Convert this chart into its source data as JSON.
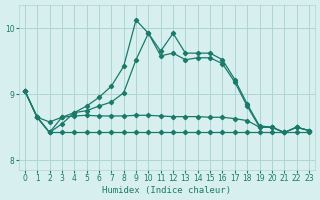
{
  "xlabel": "Humidex (Indice chaleur)",
  "xlim": [
    -0.5,
    23.5
  ],
  "ylim": [
    7.85,
    10.35
  ],
  "yticks": [
    8,
    9,
    10
  ],
  "xticks": [
    0,
    1,
    2,
    3,
    4,
    5,
    6,
    7,
    8,
    9,
    10,
    11,
    12,
    13,
    14,
    15,
    16,
    17,
    18,
    19,
    20,
    21,
    22,
    23
  ],
  "bg_color": "#d8efef",
  "grid_color": "#aed4d4",
  "line_color": "#1a7a6a",
  "line1": [
    9.05,
    8.65,
    8.42,
    8.55,
    8.72,
    8.82,
    8.95,
    9.12,
    9.42,
    10.12,
    9.92,
    9.65,
    9.92,
    9.62,
    9.62,
    9.62,
    9.52,
    9.22,
    8.85,
    8.52,
    8.5,
    8.42,
    8.5,
    8.45
  ],
  "line2": [
    9.05,
    8.65,
    8.42,
    8.65,
    8.72,
    8.75,
    8.82,
    8.88,
    9.02,
    9.52,
    9.92,
    9.58,
    9.62,
    9.52,
    9.55,
    9.55,
    9.46,
    9.18,
    8.82,
    8.5,
    8.5,
    8.42,
    8.5,
    8.45
  ],
  "line3": [
    9.05,
    8.65,
    8.58,
    8.65,
    8.67,
    8.68,
    8.67,
    8.67,
    8.67,
    8.68,
    8.68,
    8.67,
    8.66,
    8.66,
    8.66,
    8.65,
    8.65,
    8.63,
    8.6,
    8.5,
    8.5,
    8.42,
    8.5,
    8.45
  ],
  "line4": [
    9.05,
    8.65,
    8.42,
    8.42,
    8.42,
    8.42,
    8.42,
    8.42,
    8.42,
    8.42,
    8.42,
    8.42,
    8.42,
    8.42,
    8.42,
    8.42,
    8.42,
    8.42,
    8.42,
    8.42,
    8.42,
    8.42,
    8.42,
    8.42
  ]
}
